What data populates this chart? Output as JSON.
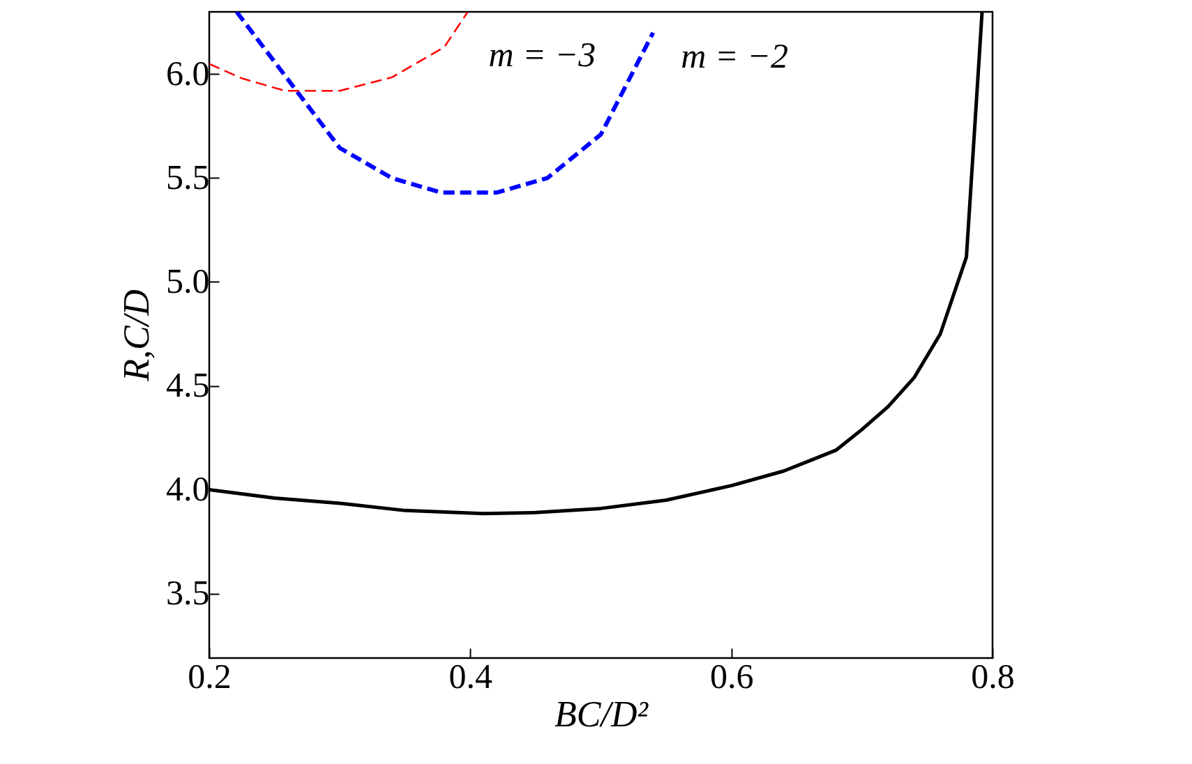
{
  "chart_data": {
    "type": "line",
    "xlabel": "BC/D²",
    "ylabel": "R,C/D",
    "xlim": [
      0.2,
      0.8
    ],
    "xticks": [
      0.2,
      0.4,
      0.6,
      0.8
    ],
    "ylim": [
      3.19,
      6.3
    ],
    "yticks": [
      3.5,
      {
        "value": 4,
        "label": "4.0"
      },
      4.5,
      {
        "value": 5,
        "label": "5.0"
      },
      5.5,
      {
        "value": 6,
        "label": "6.0"
      }
    ],
    "grid": false,
    "series": [
      {
        "color": "#000000",
        "line_style": "solid",
        "x": [
          0.2,
          0.25,
          0.3,
          0.35,
          0.41,
          0.45,
          0.5,
          0.55,
          0.6,
          0.64,
          0.66,
          0.68,
          0.7,
          0.72,
          0.74,
          0.76,
          0.78,
          0.79,
          0.792
        ],
        "values": [
          4.0,
          3.96,
          3.935,
          3.9,
          3.885,
          3.89,
          3.91,
          3.95,
          4.02,
          4.09,
          4.14,
          4.19,
          4.29,
          4.4,
          4.54,
          4.75,
          5.12,
          6.1,
          6.3
        ]
      },
      {
        "name": "m = −2",
        "color": "#0000ff",
        "line_style": "dashed",
        "x": [
          0.221,
          0.3,
          0.34,
          0.378,
          0.42,
          0.459,
          0.5,
          0.54
        ],
        "values": [
          6.3,
          5.645,
          5.5,
          5.43,
          5.43,
          5.5,
          5.71,
          6.2
        ]
      },
      {
        "name": "m = −3",
        "color": "#ff0000",
        "line_style": "dashed",
        "x": [
          0.2,
          0.225,
          0.258,
          0.3,
          0.34,
          0.38,
          0.398
        ],
        "values": [
          6.05,
          5.98,
          5.92,
          5.92,
          5.985,
          6.13,
          6.3
        ]
      }
    ]
  }
}
